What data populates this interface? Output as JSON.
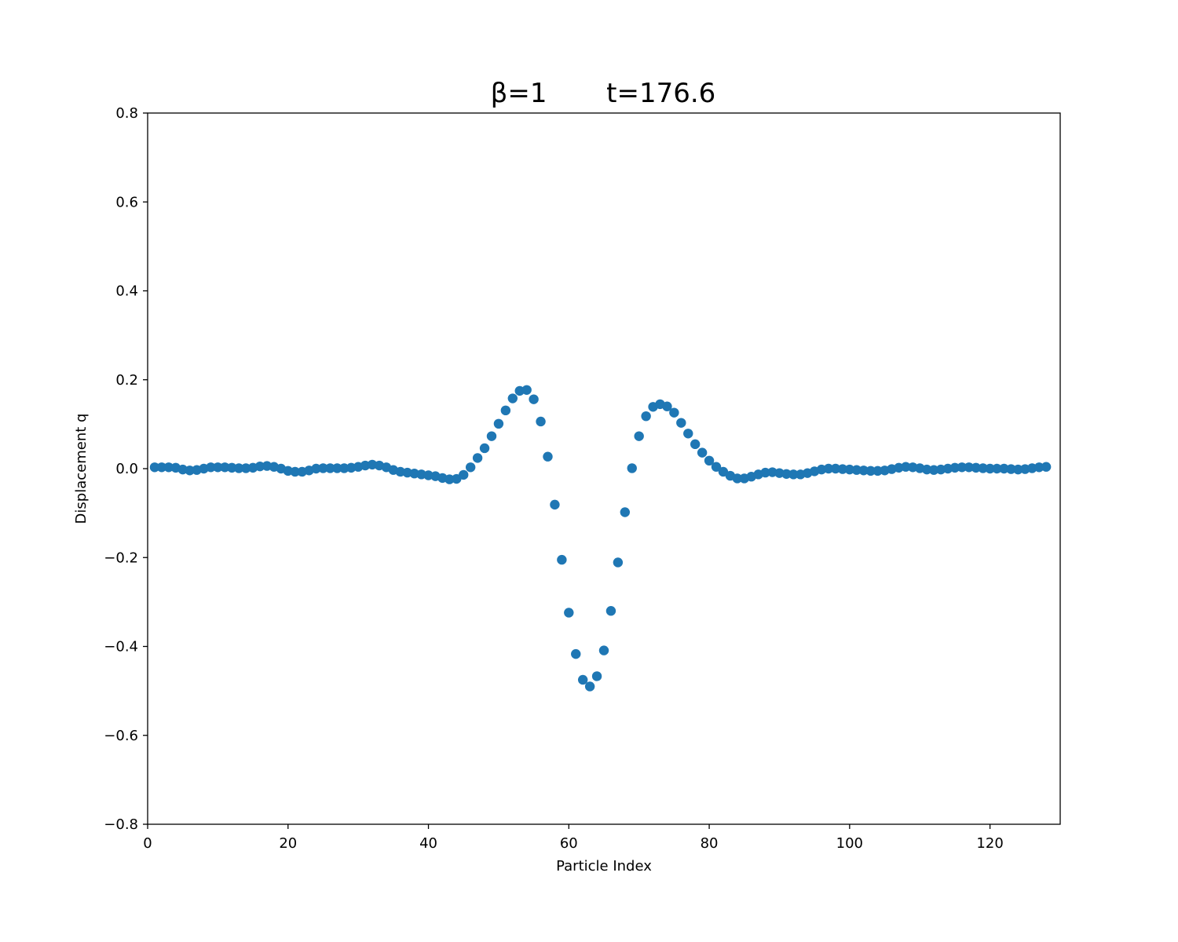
{
  "chart_data": {
    "type": "scatter",
    "title": "β=1       t=176.6",
    "xlabel": "Particle Index",
    "ylabel": "Displacement q",
    "xlim": [
      0,
      130
    ],
    "ylim": [
      -0.8,
      0.8
    ],
    "xticks": [
      0,
      20,
      40,
      60,
      80,
      100,
      120
    ],
    "yticks": [
      -0.8,
      -0.6,
      -0.4,
      -0.2,
      0.0,
      0.2,
      0.4,
      0.6,
      0.8
    ],
    "xtick_labels": [
      "0",
      "20",
      "40",
      "60",
      "80",
      "100",
      "120"
    ],
    "ytick_labels": [
      "−0.8",
      "−0.6",
      "−0.4",
      "−0.2",
      "0.0",
      "0.2",
      "0.4",
      "0.6",
      "0.8"
    ],
    "grid": false,
    "color": "#1f77b4",
    "series": [
      {
        "x": [
          1,
          2,
          3,
          4,
          5,
          6,
          7,
          8,
          9,
          10,
          11,
          12,
          13,
          14,
          15,
          16,
          17,
          18,
          19,
          20,
          21,
          22,
          23,
          24,
          25,
          26,
          27,
          28,
          29,
          30,
          31,
          32,
          33,
          34,
          35,
          36,
          37,
          38,
          39,
          40,
          41,
          42,
          43,
          44,
          45,
          46,
          47,
          48,
          49,
          50,
          51,
          52,
          53,
          54,
          55,
          56,
          57,
          58,
          59,
          60,
          61,
          62,
          63,
          64,
          65,
          66,
          67,
          68,
          69,
          70,
          71,
          72,
          73,
          74,
          75,
          76,
          77,
          78,
          79,
          80,
          81,
          82,
          83,
          84,
          85,
          86,
          87,
          88,
          89,
          90,
          91,
          92,
          93,
          94,
          95,
          96,
          97,
          98,
          99,
          100,
          101,
          102,
          103,
          104,
          105,
          106,
          107,
          108,
          109,
          110,
          111,
          112,
          113,
          114,
          115,
          116,
          117,
          118,
          119,
          120,
          121,
          122,
          123,
          124,
          125,
          126,
          127,
          128
        ],
        "y": [
          0.003,
          0.003,
          0.003,
          0.002,
          -0.002,
          -0.004,
          -0.003,
          0.0,
          0.003,
          0.003,
          0.003,
          0.002,
          0.001,
          0.001,
          0.002,
          0.005,
          0.006,
          0.004,
          0.0,
          -0.005,
          -0.007,
          -0.007,
          -0.004,
          0.0,
          0.001,
          0.001,
          0.001,
          0.001,
          0.002,
          0.004,
          0.007,
          0.009,
          0.007,
          0.003,
          -0.003,
          -0.007,
          -0.009,
          -0.011,
          -0.013,
          -0.015,
          -0.017,
          -0.021,
          -0.024,
          -0.023,
          -0.014,
          0.003,
          0.024,
          0.046,
          0.073,
          0.101,
          0.131,
          0.158,
          0.175,
          0.177,
          0.156,
          0.106,
          0.027,
          -0.081,
          -0.205,
          -0.324,
          -0.417,
          -0.475,
          -0.49,
          -0.467,
          -0.409,
          -0.32,
          -0.211,
          -0.098,
          0.001,
          0.073,
          0.118,
          0.139,
          0.145,
          0.14,
          0.126,
          0.103,
          0.079,
          0.055,
          0.036,
          0.018,
          0.004,
          -0.007,
          -0.016,
          -0.022,
          -0.022,
          -0.018,
          -0.013,
          -0.009,
          -0.008,
          -0.01,
          -0.012,
          -0.013,
          -0.013,
          -0.01,
          -0.006,
          -0.002,
          0.0,
          0.0,
          -0.001,
          -0.002,
          -0.003,
          -0.004,
          -0.005,
          -0.005,
          -0.004,
          -0.001,
          0.002,
          0.004,
          0.003,
          0.001,
          -0.002,
          -0.003,
          -0.002,
          0.0,
          0.002,
          0.003,
          0.003,
          0.002,
          0.001,
          0.0,
          0.0,
          0.0,
          -0.001,
          -0.002,
          -0.001,
          0.001,
          0.003,
          0.004
        ]
      }
    ]
  }
}
